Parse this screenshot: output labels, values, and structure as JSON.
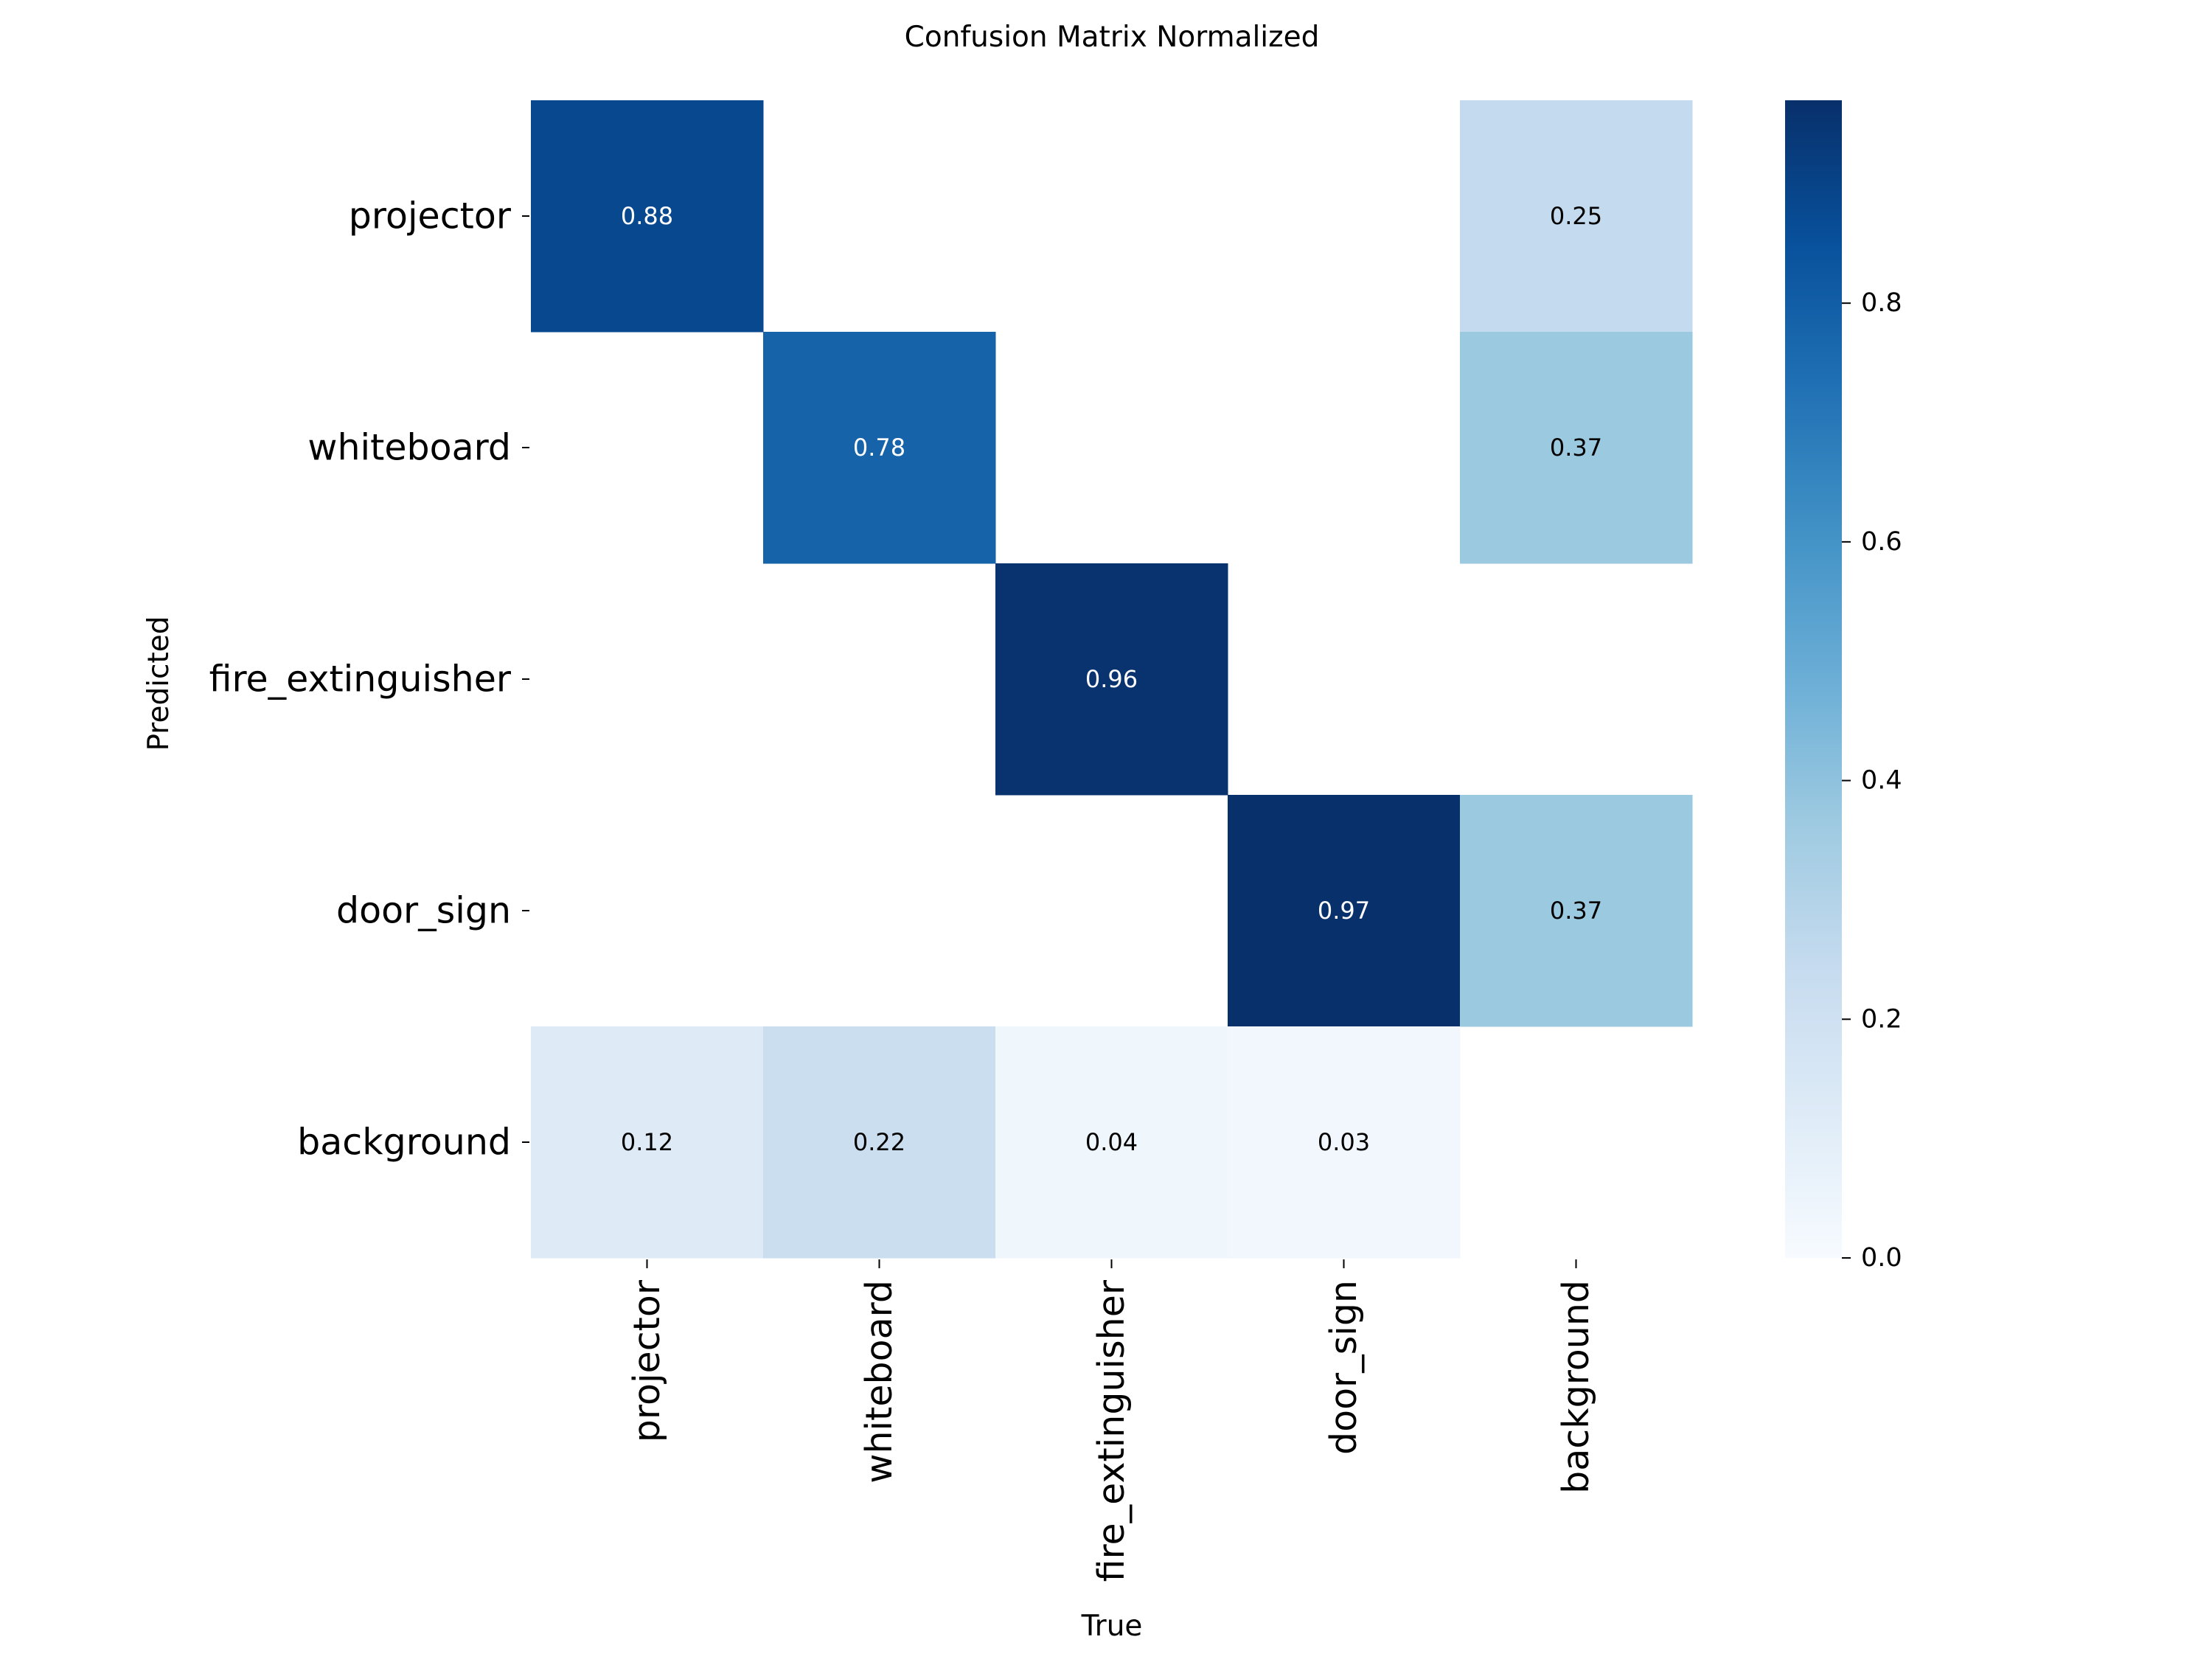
{
  "chart_data": {
    "type": "heatmap",
    "title": "Confusion Matrix Normalized",
    "xlabel": "True",
    "ylabel": "Predicted",
    "x_categories": [
      "projector",
      "whiteboard",
      "fire_extinguisher",
      "door_sign",
      "background"
    ],
    "y_categories": [
      "projector",
      "whiteboard",
      "fire_extinguisher",
      "door_sign",
      "background"
    ],
    "values": [
      [
        0.88,
        null,
        null,
        null,
        0.25
      ],
      [
        null,
        0.78,
        null,
        null,
        0.37
      ],
      [
        null,
        null,
        0.96,
        null,
        null
      ],
      [
        null,
        null,
        null,
        0.97,
        0.37
      ],
      [
        0.12,
        0.22,
        0.04,
        0.03,
        null
      ]
    ],
    "colorbar": {
      "cmap": "Blues",
      "range": [
        0,
        0.97
      ],
      "ticks": [
        0.0,
        0.2,
        0.4,
        0.6,
        0.8
      ],
      "tick_labels": [
        "0.0",
        "0.2",
        "0.4",
        "0.6",
        "0.8"
      ]
    },
    "grid": false
  }
}
